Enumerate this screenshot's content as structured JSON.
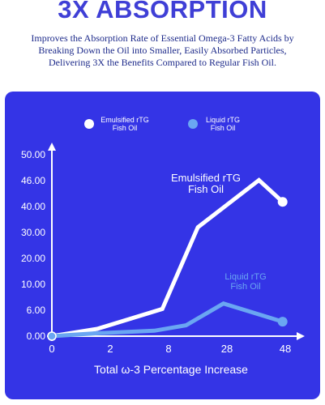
{
  "header": {
    "headline": "3X ABSORPTION",
    "subtitle_lines": [
      "Improves the Absorption Rate of Essential Omega-3 Fatty Acids by",
      "Breaking Down the Oil into Smaller, Easily Absorbed Particles,",
      "Delivering 3X the Benefits Compared to Regular Fish Oil."
    ]
  },
  "colors": {
    "panel": "#3434e6",
    "series_emulsified": "#ffffff",
    "series_liquid": "#6aa6f2"
  },
  "chart_data": {
    "type": "line",
    "xlabel": "Total ω-3 Percentage Increase",
    "ylabel": "",
    "x_tick_labels": [
      "0",
      "2",
      "8",
      "28",
      "48"
    ],
    "y_tick_labels": [
      "0.00",
      "6.00",
      "10.00",
      "20.00",
      "30.00",
      "40.00",
      "46.00",
      "50.00"
    ],
    "ylim": [
      0,
      50
    ],
    "legend": {
      "placement": "top"
    },
    "series": [
      {
        "name": "Emulsified rTG Fish Oil",
        "label_lines": [
          "Emulsified rTG",
          "Fish Oil"
        ],
        "legend_lines": [
          "Emulsified rTG",
          "Fish Oil"
        ],
        "color": "#ffffff",
        "points": [
          {
            "x": 0,
            "y": 0
          },
          {
            "x": 2.3,
            "y": 2
          },
          {
            "x": 5.6,
            "y": 7.5
          },
          {
            "x": 7.4,
            "y": 30
          },
          {
            "x": 10.5,
            "y": 43
          },
          {
            "x": 11.7,
            "y": 37
          }
        ]
      },
      {
        "name": "Liquid rTG Fish Oil",
        "label_lines": [
          "Liquid rTG",
          "Fish Oil"
        ],
        "legend_lines": [
          "Liquid rTG",
          "Fish Oil"
        ],
        "color": "#6aa6f2",
        "points": [
          {
            "x": 0,
            "y": 0
          },
          {
            "x": 2.3,
            "y": 0.8
          },
          {
            "x": 5.2,
            "y": 1.5
          },
          {
            "x": 6.8,
            "y": 3
          },
          {
            "x": 8.7,
            "y": 9
          },
          {
            "x": 11.7,
            "y": 4
          }
        ]
      }
    ]
  }
}
